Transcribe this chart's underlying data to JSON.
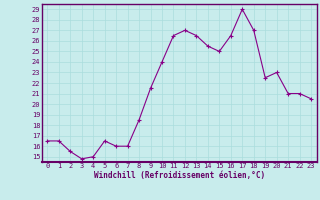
{
  "x": [
    0,
    1,
    2,
    3,
    4,
    5,
    6,
    7,
    8,
    9,
    10,
    11,
    12,
    13,
    14,
    15,
    16,
    17,
    18,
    19,
    20,
    21,
    22,
    23
  ],
  "y": [
    16.5,
    16.5,
    15.5,
    14.8,
    15.0,
    16.5,
    16.0,
    16.0,
    18.5,
    21.5,
    24.0,
    26.5,
    27.0,
    26.5,
    25.5,
    25.0,
    26.5,
    29.0,
    27.0,
    22.5,
    23.0,
    21.0,
    21.0,
    20.5
  ],
  "line_color": "#880088",
  "marker": "+",
  "marker_size": 3,
  "marker_lw": 0.8,
  "line_width": 0.8,
  "bg_color": "#c8ecec",
  "grid_color": "#aadddd",
  "axis_color": "#660066",
  "spine_color": "#660066",
  "xlabel": "Windchill (Refroidissement éolien,°C)",
  "xlim": [
    -0.5,
    23.5
  ],
  "ylim": [
    14.5,
    29.5
  ],
  "yticks": [
    15,
    16,
    17,
    18,
    19,
    20,
    21,
    22,
    23,
    24,
    25,
    26,
    27,
    28,
    29
  ],
  "xticks": [
    0,
    1,
    2,
    3,
    4,
    5,
    6,
    7,
    8,
    9,
    10,
    11,
    12,
    13,
    14,
    15,
    16,
    17,
    18,
    19,
    20,
    21,
    22,
    23
  ],
  "xlabel_fontsize": 5.5,
  "xlabel_fontweight": "bold",
  "tick_fontsize": 5.0,
  "tick_color": "#660066"
}
